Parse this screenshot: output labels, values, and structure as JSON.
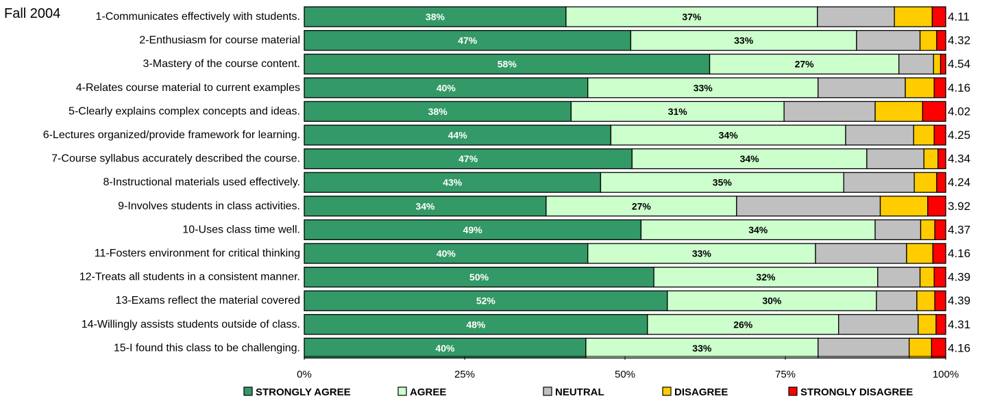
{
  "page_title": "Fall 2004",
  "chart_data": {
    "type": "bar",
    "orientation": "horizontal",
    "stacked": "percent",
    "categories": [
      "1-Communicates effectively with students.",
      "2-Enthusiasm for course material",
      "3-Mastery of the course content.",
      "4-Relates course material to current examples",
      "5-Clearly explains complex concepts and ideas.",
      "6-Lectures organized/provide framework for learning.",
      "7-Course syllabus accurately described the course.",
      "8-Instructional materials used effectively.",
      "9-Involves students in class activities.",
      "10-Uses class time well.",
      "11-Fosters environment for critical thinking",
      "12-Treats all students in a consistent manner.",
      "13-Exams reflect the material covered",
      "14-Willingly assists students outside of class.",
      "15-I found this class to be challenging."
    ],
    "series": [
      {
        "name": "STRONGLY AGREE",
        "color": "#339966",
        "values": [
          40.8,
          50.9,
          63.2,
          44.2,
          41.6,
          47.8,
          51.1,
          46.2,
          37.7,
          52.5,
          44.2,
          54.5,
          56.6,
          53.5,
          43.9
        ],
        "labels": [
          "38%",
          "47%",
          "58%",
          "40%",
          "38%",
          "44%",
          "47%",
          "43%",
          "34%",
          "49%",
          "40%",
          "50%",
          "52%",
          "48%",
          "40%"
        ]
      },
      {
        "name": "AGREE",
        "color": "#CCFFCC",
        "values": [
          39.2,
          35.2,
          29.5,
          35.9,
          33.2,
          36.6,
          36.6,
          37.9,
          29.7,
          36.5,
          35.5,
          34.9,
          32.6,
          29.8,
          36.2
        ],
        "labels": [
          "37%",
          "33%",
          "27%",
          "33%",
          "31%",
          "34%",
          "34%",
          "35%",
          "27%",
          "34%",
          "33%",
          "32%",
          "30%",
          "26%",
          "33%"
        ]
      },
      {
        "name": "NEUTRAL",
        "color": "#C0C0C0",
        "values": [
          12.0,
          9.9,
          5.4,
          13.6,
          14.2,
          10.6,
          8.9,
          11.0,
          22.4,
          7.1,
          14.2,
          6.6,
          6.3,
          12.4,
          14.2
        ]
      },
      {
        "name": "DISAGREE",
        "color": "#FFCC00",
        "values": [
          5.9,
          2.6,
          1.1,
          4.5,
          7.4,
          3.2,
          2.2,
          3.5,
          7.4,
          2.2,
          4.1,
          2.2,
          2.8,
          2.8,
          3.5
        ]
      },
      {
        "name": "STRONGLY DISAGREE",
        "color": "#FF0000",
        "values": [
          2.1,
          1.4,
          0.8,
          1.8,
          3.6,
          1.8,
          1.2,
          1.4,
          2.8,
          1.7,
          2.0,
          1.8,
          1.7,
          1.5,
          2.2
        ]
      }
    ],
    "means": [
      "4.11",
      "4.32",
      "4.54",
      "4.16",
      "4.02",
      "4.25",
      "4.34",
      "4.24",
      "3.92",
      "4.37",
      "4.16",
      "4.39",
      "4.39",
      "4.31",
      "4.16"
    ],
    "xticks": [
      "0%",
      "25%",
      "50%",
      "75%",
      "100%"
    ],
    "xlim": [
      0,
      100
    ],
    "grid": false,
    "legend": {
      "position": "bottom",
      "entries": [
        "STRONGLY AGREE",
        "AGREE",
        "NEUTRAL",
        "DISAGREE",
        "STRONGLY DISAGREE"
      ]
    }
  }
}
